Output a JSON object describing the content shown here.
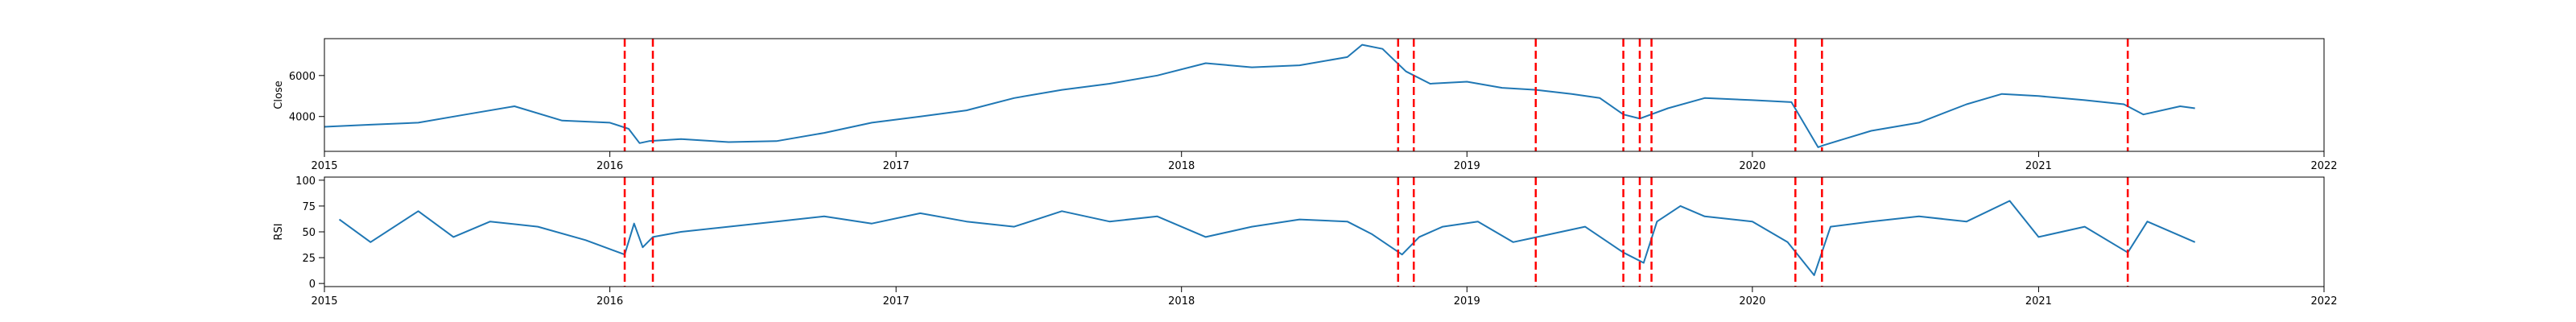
{
  "chart_data": [
    {
      "type": "line",
      "ylabel": "Close",
      "xlim": [
        "2015-01-01",
        "2022-01-01"
      ],
      "ylim": [
        2300,
        7800
      ],
      "yticks": [
        4000,
        6000
      ],
      "xtick_labels": [
        "2015",
        "2016",
        "2017",
        "2018",
        "2019",
        "2020",
        "2021",
        "2022"
      ],
      "series": [
        {
          "x": [
            "2015-01-01",
            "2015-03-01",
            "2015-05-01",
            "2015-07-01",
            "2015-09-01",
            "2015-11-01",
            "2016-01-01",
            "2016-01-25",
            "2016-02-08",
            "2016-02-20",
            "2016-04-01",
            "2016-06-01",
            "2016-08-01",
            "2016-10-01",
            "2016-12-01",
            "2017-02-01",
            "2017-04-01",
            "2017-06-01",
            "2017-08-01",
            "2017-10-01",
            "2017-12-01",
            "2018-02-01",
            "2018-04-01",
            "2018-06-01",
            "2018-08-01",
            "2018-08-20",
            "2018-09-15",
            "2018-10-15",
            "2018-11-15",
            "2019-01-01",
            "2019-02-15",
            "2019-03-30",
            "2019-05-15",
            "2019-06-20",
            "2019-07-20",
            "2019-08-10",
            "2019-09-15",
            "2019-11-01",
            "2020-01-01",
            "2020-02-20",
            "2020-03-25",
            "2020-04-01",
            "2020-06-01",
            "2020-08-01",
            "2020-10-01",
            "2020-11-15",
            "2021-01-01",
            "2021-03-01",
            "2021-04-20",
            "2021-05-15",
            "2021-07-01",
            "2021-07-20"
          ],
          "y": [
            3500,
            3600,
            3700,
            4100,
            4500,
            3800,
            3700,
            3400,
            2700,
            2800,
            2900,
            2750,
            2800,
            3200,
            3700,
            4000,
            4300,
            4900,
            5300,
            5600,
            6000,
            6600,
            6400,
            6500,
            6900,
            7500,
            7300,
            6200,
            5600,
            5700,
            5400,
            5300,
            5100,
            4900,
            4100,
            3900,
            4400,
            4900,
            4800,
            4700,
            2500,
            2600,
            3300,
            3700,
            4600,
            5100,
            5000,
            4800,
            4600,
            4100,
            4500,
            4400
          ]
        }
      ],
      "vlines": [
        "2016-01-20",
        "2016-02-25",
        "2018-10-05",
        "2018-10-25",
        "2019-03-30",
        "2019-07-20",
        "2019-08-10",
        "2019-08-25",
        "2020-02-25",
        "2020-03-30",
        "2021-04-25"
      ]
    },
    {
      "type": "line",
      "ylabel": "RSI",
      "xlim": [
        "2015-01-01",
        "2022-01-01"
      ],
      "ylim": [
        -3,
        103
      ],
      "yticks": [
        0,
        25,
        50,
        75,
        100
      ],
      "xtick_labels": [
        "2015",
        "2016",
        "2017",
        "2018",
        "2019",
        "2020",
        "2021",
        "2022"
      ],
      "series": [
        {
          "x": [
            "2015-01-20",
            "2015-03-01",
            "2015-05-01",
            "2015-06-15",
            "2015-08-01",
            "2015-10-01",
            "2015-12-01",
            "2016-01-20",
            "2016-02-01",
            "2016-02-12",
            "2016-02-25",
            "2016-04-01",
            "2016-06-01",
            "2016-08-01",
            "2016-10-01",
            "2016-12-01",
            "2017-02-01",
            "2017-04-01",
            "2017-06-01",
            "2017-08-01",
            "2017-10-01",
            "2017-12-01",
            "2018-02-01",
            "2018-04-01",
            "2018-06-01",
            "2018-08-01",
            "2018-09-01",
            "2018-10-10",
            "2018-11-01",
            "2018-12-01",
            "2019-01-15",
            "2019-03-01",
            "2019-04-01",
            "2019-06-01",
            "2019-07-20",
            "2019-08-15",
            "2019-09-01",
            "2019-10-01",
            "2019-11-01",
            "2020-01-01",
            "2020-02-15",
            "2020-03-20",
            "2020-04-10",
            "2020-06-01",
            "2020-08-01",
            "2020-10-01",
            "2020-11-25",
            "2021-01-01",
            "2021-03-01",
            "2021-04-25",
            "2021-05-20",
            "2021-07-20"
          ],
          "y": [
            62,
            40,
            70,
            45,
            60,
            55,
            42,
            28,
            58,
            35,
            45,
            50,
            55,
            60,
            65,
            58,
            68,
            60,
            55,
            70,
            60,
            65,
            45,
            55,
            62,
            60,
            48,
            28,
            45,
            55,
            60,
            40,
            45,
            55,
            30,
            20,
            60,
            75,
            65,
            60,
            40,
            8,
            55,
            60,
            65,
            60,
            80,
            45,
            55,
            30,
            60,
            40
          ]
        }
      ],
      "vlines": [
        "2016-01-20",
        "2016-02-25",
        "2018-10-05",
        "2018-10-25",
        "2019-03-30",
        "2019-07-20",
        "2019-08-10",
        "2019-08-25",
        "2020-02-25",
        "2020-03-30",
        "2021-04-25"
      ]
    }
  ]
}
